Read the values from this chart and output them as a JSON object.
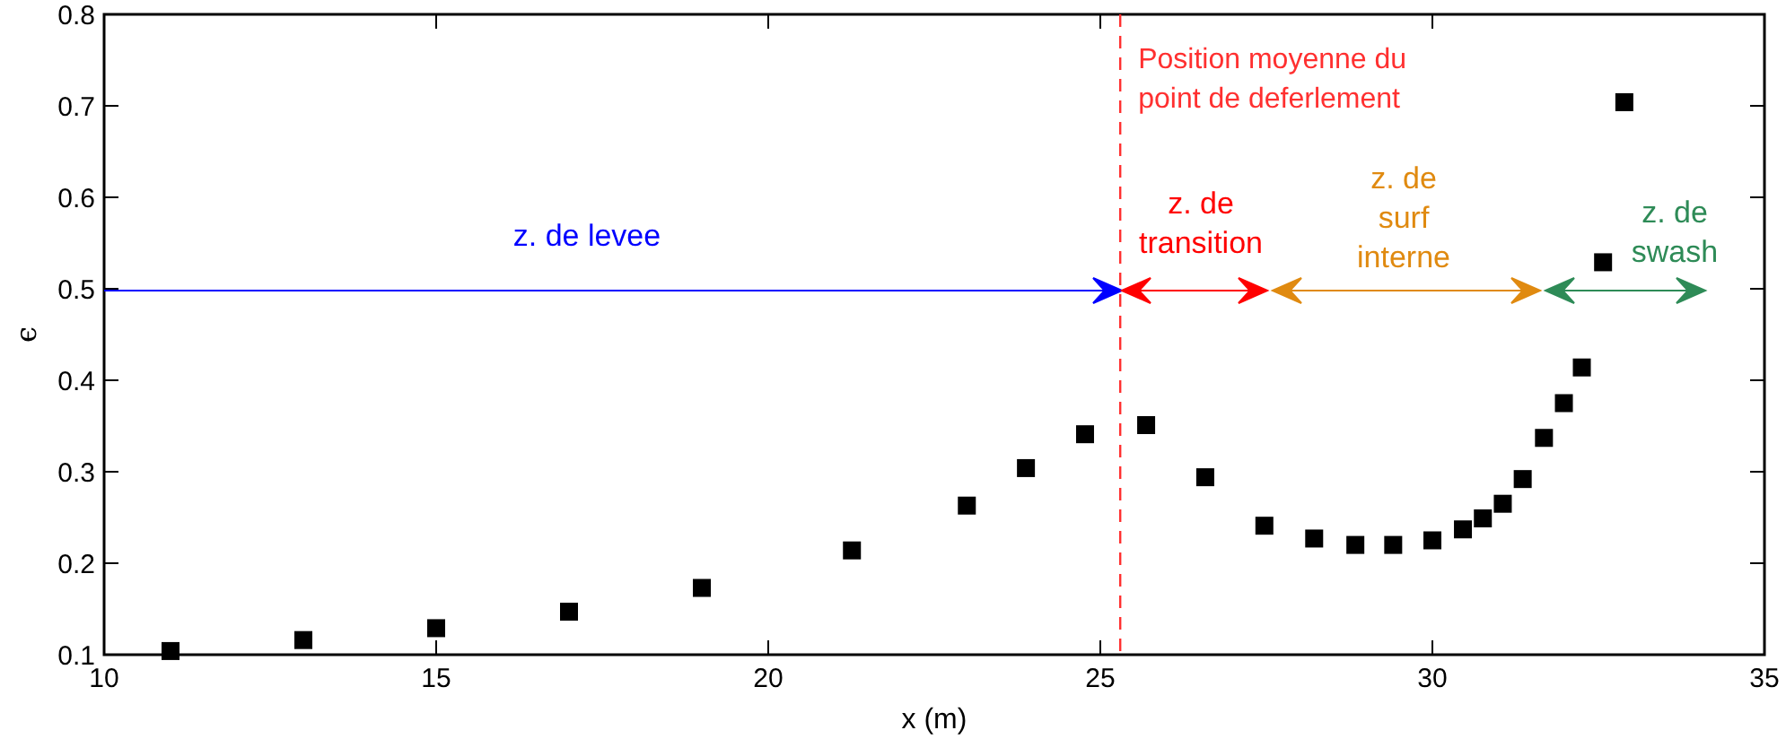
{
  "chart_data": {
    "type": "scatter",
    "xlabel": "x (m)",
    "ylabel": "ϵ",
    "xlim": [
      10,
      35
    ],
    "xticks": [
      10,
      15,
      20,
      25,
      30,
      35
    ],
    "ylim": [
      0.1,
      0.8
    ],
    "yticks": [
      0.1,
      0.2,
      0.3,
      0.4,
      0.5,
      0.6,
      0.7,
      0.8
    ],
    "grid": false,
    "marker": "square",
    "series": [
      {
        "color": "#000000",
        "x": [
          11,
          13,
          15,
          17,
          19,
          21.26,
          22.99,
          23.88,
          24.77,
          25.69,
          26.58,
          27.47,
          28.22,
          28.84,
          29.41,
          30.0,
          30.46,
          30.76,
          31.06,
          31.36,
          31.68,
          31.98,
          32.25,
          32.57,
          32.89
        ],
        "values": [
          0.104,
          0.116,
          0.129,
          0.147,
          0.173,
          0.214,
          0.263,
          0.304,
          0.341,
          0.351,
          0.294,
          0.241,
          0.227,
          0.22,
          0.22,
          0.225,
          0.237,
          0.249,
          0.265,
          0.292,
          0.337,
          0.375,
          0.414,
          0.529,
          0.704
        ]
      }
    ],
    "ref_lines": [
      {
        "axis": "x",
        "value": 25.3,
        "label": "Position moyenne du\npoint de deferlement",
        "color": "#ff3030",
        "line_style": "dashed"
      }
    ],
    "annotations": [
      "z. de levee",
      "z. de\ntransition",
      "z. de\nsurf\ninterne",
      "z. de\nswash"
    ]
  }
}
